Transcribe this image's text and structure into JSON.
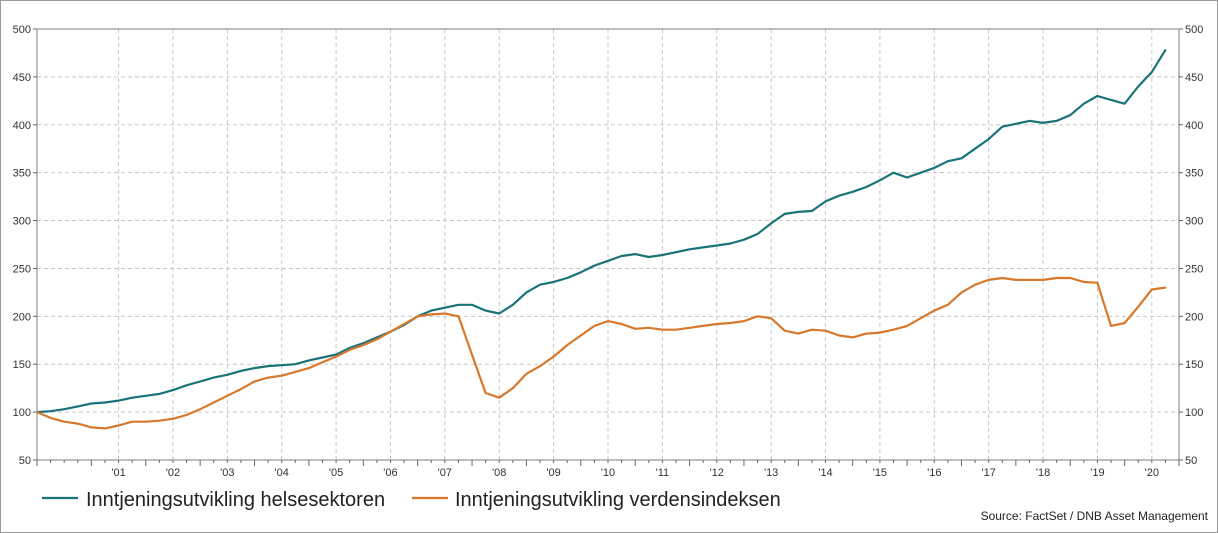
{
  "chart_data": {
    "type": "line",
    "title": "",
    "xlabel": "",
    "ylabel": "",
    "ylim": [
      50,
      500
    ],
    "xlim": [
      2000.0,
      2021.0
    ],
    "grid": true,
    "legend_position": "bottom-left",
    "y_ticks": [
      "50",
      "100",
      "150",
      "200",
      "250",
      "300",
      "350",
      "400",
      "450",
      "500"
    ],
    "x_tick_labels": [
      "'01",
      "'02",
      "'03",
      "'04",
      "'05",
      "'06",
      "'07",
      "'08",
      "'09",
      "'10",
      "'11",
      "'12",
      "'13",
      "'14",
      "'15",
      "'16",
      "'17",
      "'18",
      "'19",
      "'20"
    ],
    "series": [
      {
        "name": "Inntjeningsutvikling helsesektoren",
        "color": "#1a7378",
        "x": [
          2000.0,
          2000.25,
          2000.5,
          2000.75,
          2001.0,
          2001.25,
          2001.5,
          2001.75,
          2002.0,
          2002.25,
          2002.5,
          2002.75,
          2003.0,
          2003.25,
          2003.5,
          2003.75,
          2004.0,
          2004.25,
          2004.5,
          2004.75,
          2005.0,
          2005.25,
          2005.5,
          2005.75,
          2006.0,
          2006.25,
          2006.5,
          2006.75,
          2007.0,
          2007.25,
          2007.5,
          2007.75,
          2008.0,
          2008.25,
          2008.5,
          2008.75,
          2009.0,
          2009.25,
          2009.5,
          2009.75,
          2010.0,
          2010.25,
          2010.5,
          2010.75,
          2011.0,
          2011.25,
          2011.5,
          2011.75,
          2012.0,
          2012.25,
          2012.5,
          2012.75,
          2013.0,
          2013.25,
          2013.5,
          2013.75,
          2014.0,
          2014.25,
          2014.5,
          2014.75,
          2015.0,
          2015.25,
          2015.5,
          2015.75,
          2016.0,
          2016.25,
          2016.5,
          2016.75,
          2017.0,
          2017.25,
          2017.5,
          2017.75,
          2018.0,
          2018.25,
          2018.5,
          2018.75,
          2019.0,
          2019.25,
          2019.5,
          2019.75,
          2020.0,
          2020.25,
          2020.5,
          2020.75
        ],
        "values": [
          100,
          101,
          103,
          106,
          109,
          110,
          112,
          115,
          117,
          119,
          123,
          128,
          132,
          136,
          139,
          143,
          146,
          148,
          149,
          150,
          154,
          157,
          160,
          167,
          172,
          178,
          184,
          191,
          200,
          206,
          209,
          212,
          212,
          206,
          203,
          212,
          225,
          233,
          236,
          240,
          246,
          253,
          258,
          263,
          265,
          262,
          264,
          267,
          270,
          272,
          274,
          276,
          280,
          286,
          297,
          307,
          309,
          310,
          320,
          326,
          330,
          335,
          342,
          350,
          345,
          350,
          355,
          362,
          365,
          375,
          385,
          398,
          401,
          404,
          402,
          404,
          410,
          422,
          430,
          426,
          422,
          440,
          455,
          478
        ]
      },
      {
        "name": "Inntjeningsutvikling verdensindeksen",
        "color": "#d8782b",
        "x": [
          2000.0,
          2000.25,
          2000.5,
          2000.75,
          2001.0,
          2001.25,
          2001.5,
          2001.75,
          2002.0,
          2002.25,
          2002.5,
          2002.75,
          2003.0,
          2003.25,
          2003.5,
          2003.75,
          2004.0,
          2004.25,
          2004.5,
          2004.75,
          2005.0,
          2005.25,
          2005.5,
          2005.75,
          2006.0,
          2006.25,
          2006.5,
          2006.75,
          2007.0,
          2007.25,
          2007.5,
          2007.75,
          2008.0,
          2008.25,
          2008.5,
          2008.75,
          2009.0,
          2009.25,
          2009.5,
          2009.75,
          2010.0,
          2010.25,
          2010.5,
          2010.75,
          2011.0,
          2011.25,
          2011.5,
          2011.75,
          2012.0,
          2012.25,
          2012.5,
          2012.75,
          2013.0,
          2013.25,
          2013.5,
          2013.75,
          2014.0,
          2014.25,
          2014.5,
          2014.75,
          2015.0,
          2015.25,
          2015.5,
          2015.75,
          2016.0,
          2016.25,
          2016.5,
          2016.75,
          2017.0,
          2017.25,
          2017.5,
          2017.75,
          2018.0,
          2018.25,
          2018.5,
          2018.75,
          2019.0,
          2019.25,
          2019.5,
          2019.75,
          2020.0,
          2020.25,
          2020.5,
          2020.75
        ],
        "values": [
          100,
          94,
          90,
          88,
          84,
          83,
          86,
          90,
          90,
          91,
          93,
          97,
          103,
          110,
          117,
          124,
          132,
          136,
          138,
          142,
          146,
          152,
          158,
          165,
          170,
          176,
          184,
          192,
          200,
          202,
          203,
          200,
          160,
          120,
          115,
          125,
          140,
          148,
          158,
          170,
          180,
          190,
          195,
          192,
          187,
          188,
          186,
          186,
          188,
          190,
          192,
          193,
          195,
          200,
          198,
          185,
          182,
          186,
          185,
          180,
          178,
          182,
          183,
          186,
          190,
          198,
          206,
          212,
          225,
          233,
          238,
          240,
          238,
          238,
          238,
          240,
          240,
          236,
          235,
          190,
          193,
          210,
          228,
          230
        ]
      }
    ],
    "legend": [
      "Inntjeningsutvikling helsesektoren",
      "Inntjeningsutvikling verdensindeksen"
    ],
    "source": "Source: FactSet / DNB Asset Management"
  }
}
